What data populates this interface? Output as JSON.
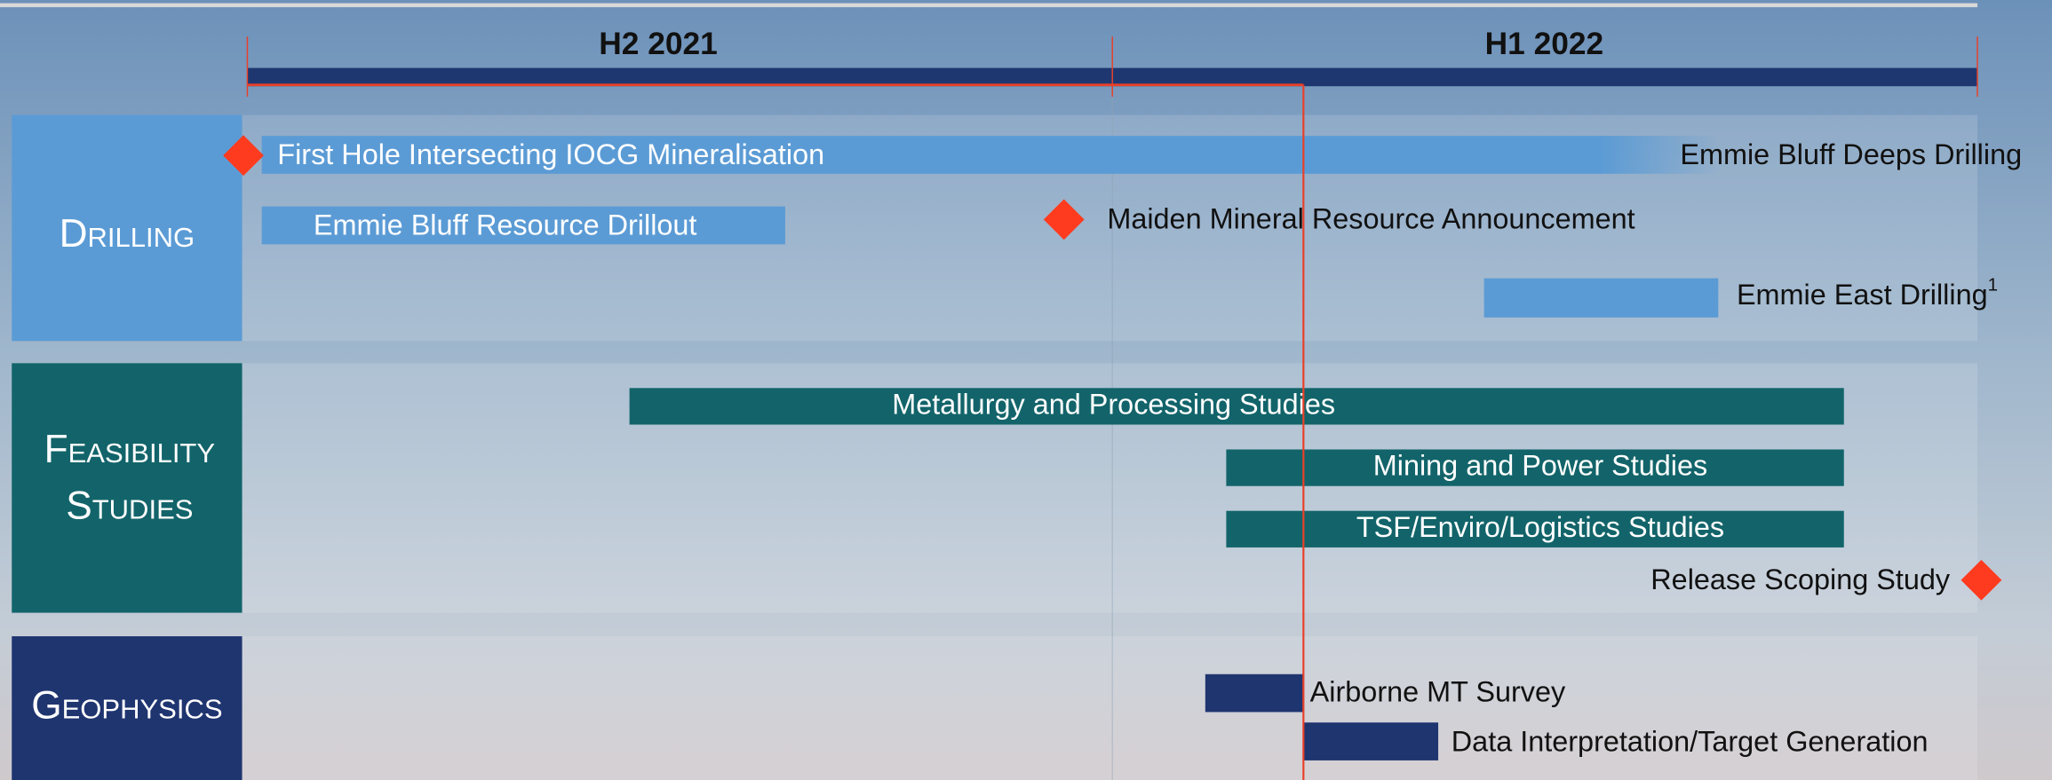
{
  "header": {
    "periods": [
      "H2 2021",
      "H1 2022"
    ]
  },
  "sections": [
    {
      "label": [
        "Drilling"
      ],
      "items": [
        "First Hole Intersecting IOCG Mineralisation",
        "Emmie Bluff Deeps Drilling",
        "Emmie Bluff Resource Drillout",
        "Maiden Mineral Resource Announcement",
        "Emmie East Drilling"
      ],
      "footnote": "1"
    },
    {
      "label": [
        "Feasibility",
        "Studies"
      ],
      "items": [
        "Metallurgy and Processing Studies",
        "Mining and Power Studies",
        "TSF/Enviro/Logistics Studies",
        "Release Scoping Study"
      ]
    },
    {
      "label": [
        "Geophysics"
      ],
      "items": [
        "Airborne MT Survey",
        "Data Interpretation/Target Generation"
      ]
    }
  ]
}
